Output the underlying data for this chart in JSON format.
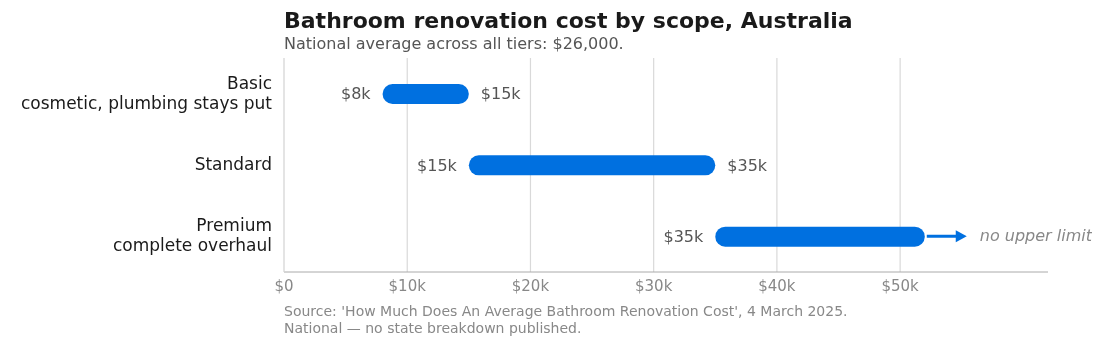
{
  "chart_data": {
    "type": "bar",
    "orientation": "horizontal",
    "title": "Bathroom renovation cost by scope, Australia",
    "subtitle": "National average across all tiers: $26,000.",
    "categories": [
      "Basic\ncosmetic, plumbing stays put",
      "Standard",
      "Premium\ncomplete overhaul"
    ],
    "base": [
      8,
      15,
      35
    ],
    "values": [
      7,
      20,
      17
    ],
    "color": "#0070e0",
    "xlim": [
      0,
      62
    ],
    "xticks": [
      {
        "value": 0,
        "label": "$0"
      },
      {
        "value": 10,
        "label": "$10k"
      },
      {
        "value": 20,
        "label": "$20k"
      },
      {
        "value": 30,
        "label": "$30k"
      },
      {
        "value": 40,
        "label": "$40k"
      },
      {
        "value": 50,
        "label": "$50k"
      }
    ],
    "grid": "x",
    "annotations": [
      {
        "text": "$8k",
        "x": 8,
        "y": "Basic\ncosmetic, plumbing stays put"
      },
      {
        "text": "$15k",
        "x": 15,
        "y": "Basic\ncosmetic, plumbing stays put"
      },
      {
        "text": "$15k",
        "x": 15,
        "y": "Standard"
      },
      {
        "text": "$35k",
        "x": 35,
        "y": "Standard"
      },
      {
        "text": "$35k",
        "x": 35,
        "y": "Premium\ncomplete overhaul"
      },
      "no upper limit",
      "Source: 'How Much Does An Average Bathroom Renovation Cost', 4 March 2025.",
      "National — no state breakdown published."
    ]
  }
}
